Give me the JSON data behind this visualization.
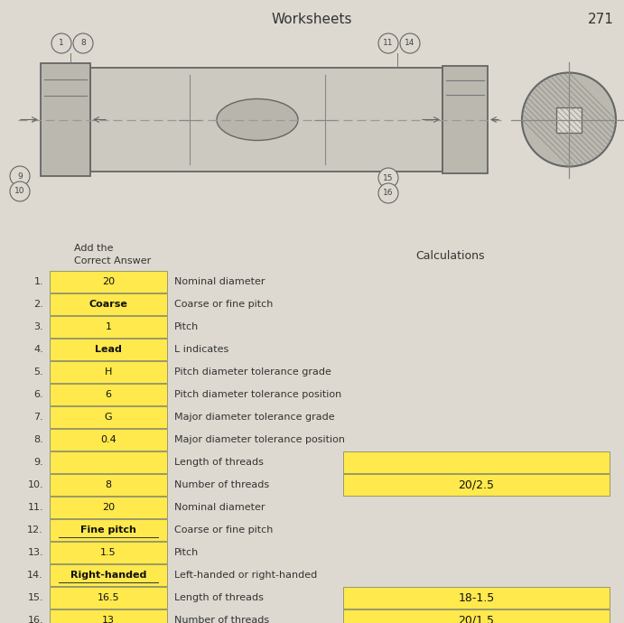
{
  "title": "Worksheets",
  "page_num": "271",
  "bg_color": "#ddd9d0",
  "yellow": "#FFE94D",
  "rows": [
    {
      "num": "1.",
      "answer": "20",
      "label": "Nominal diameter",
      "calc": "",
      "show_calc": false
    },
    {
      "num": "2.",
      "answer": "Coarse",
      "label": "Coarse or fine pitch",
      "calc": "",
      "show_calc": false
    },
    {
      "num": "3.",
      "answer": "1",
      "label": "Pitch",
      "calc": "",
      "show_calc": false
    },
    {
      "num": "4.",
      "answer": "Lead",
      "label": "L indicates",
      "calc": "",
      "show_calc": false
    },
    {
      "num": "5.",
      "answer": "H",
      "label": "Pitch diameter tolerance grade",
      "calc": "",
      "show_calc": false
    },
    {
      "num": "6.",
      "answer": "6",
      "label": "Pitch diameter tolerance position",
      "calc": "",
      "show_calc": false
    },
    {
      "num": "7.",
      "answer": "G",
      "label": "Major diameter tolerance grade",
      "calc": "",
      "show_calc": false
    },
    {
      "num": "8.",
      "answer": "0.4",
      "label": "Major diameter tolerance position",
      "calc": "",
      "show_calc": false
    },
    {
      "num": "9.",
      "answer": "",
      "label": "Length of threads",
      "calc": "",
      "show_calc": true
    },
    {
      "num": "10.",
      "answer": "8",
      "label": "Number of threads",
      "calc": "20/2.5",
      "show_calc": true
    },
    {
      "num": "11.",
      "answer": "20",
      "label": "Nominal diameter",
      "calc": "",
      "show_calc": false
    },
    {
      "num": "12.",
      "answer": "Fine pitch",
      "label": "Coarse or fine pitch",
      "calc": "",
      "show_calc": false
    },
    {
      "num": "13.",
      "answer": "1.5",
      "label": "Pitch",
      "calc": "",
      "show_calc": false
    },
    {
      "num": "14.",
      "answer": "Right-handed",
      "label": "Left-handed or right-handed",
      "calc": "",
      "show_calc": false
    },
    {
      "num": "15.",
      "answer": "16.5",
      "label": "Length of threads",
      "calc": "18-1.5",
      "show_calc": true
    },
    {
      "num": "16.",
      "answer": "13",
      "label": "Number of threads",
      "calc": "20/1.5",
      "show_calc": true
    }
  ]
}
